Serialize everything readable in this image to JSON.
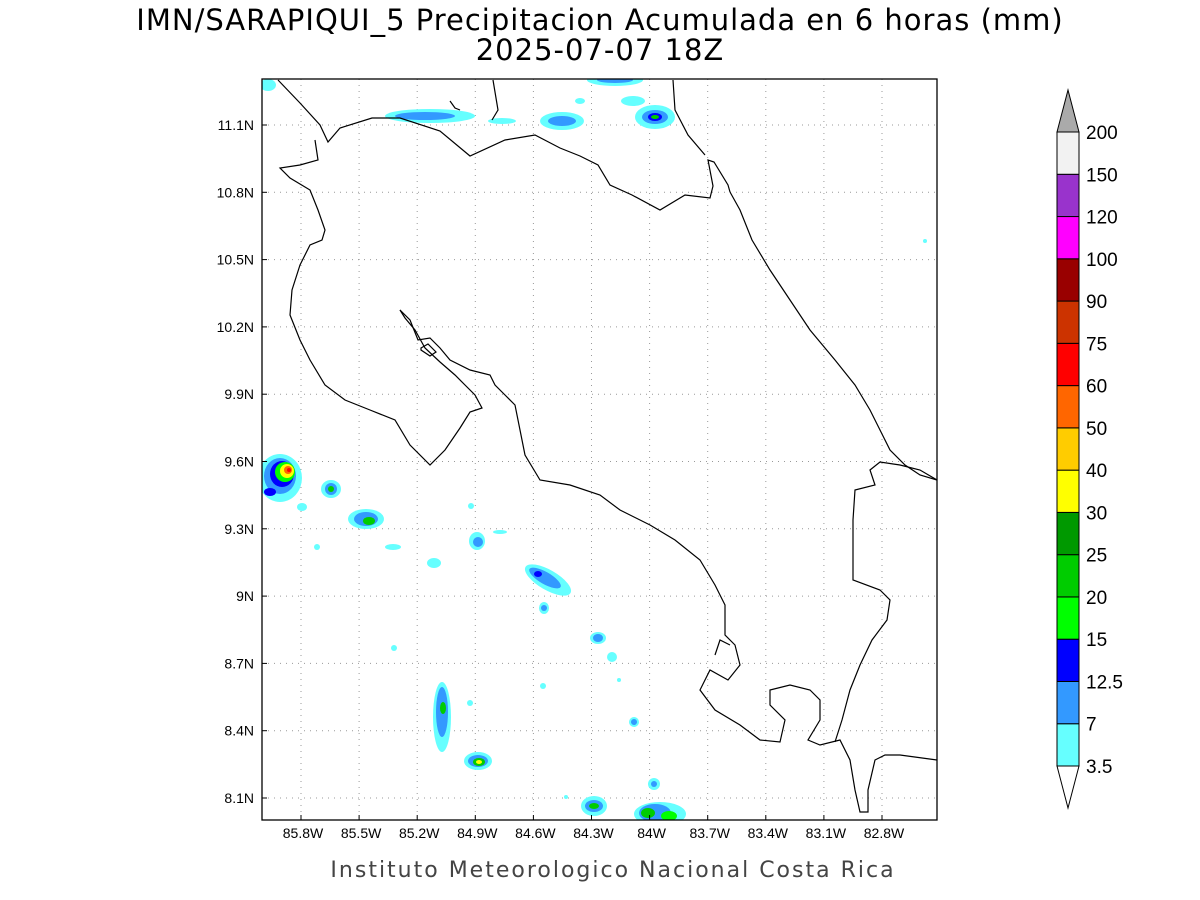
{
  "header": {
    "title": "IMN/SARAPIQUI_5 Precipitacion Acumulada en 6 horas (mm)",
    "subtitle": "2025-07-07 18Z"
  },
  "map": {
    "lat_ticks": [
      "11.1N",
      "10.8N",
      "10.5N",
      "10.2N",
      "9.9N",
      "9.6N",
      "9.3N",
      "9N",
      "8.7N",
      "8.4N",
      "8.1N"
    ],
    "lon_ticks": [
      "85.8W",
      "85.5W",
      "85.2W",
      "84.9W",
      "84.6W",
      "84.3W",
      "84W",
      "83.7W",
      "83.4W",
      "83.1W",
      "82.8W"
    ],
    "grid": "dotted",
    "coastline_color": "#000000"
  },
  "colorbar": {
    "labels": [
      "3.5",
      "7",
      "12.5",
      "15",
      "20",
      "25",
      "30",
      "40",
      "50",
      "60",
      "75",
      "90",
      "100",
      "120",
      "150",
      "200"
    ],
    "colors": [
      "#ffffff",
      "#66ffff",
      "#3399ff",
      "#0000ff",
      "#00ff00",
      "#00cc00",
      "#009900",
      "#ffff00",
      "#ffcc00",
      "#ff6600",
      "#ff0000",
      "#cc3300",
      "#990000",
      "#ff00ff",
      "#9933cc",
      "#f2f2f2",
      "#aaaaaa"
    ]
  },
  "footer": {
    "credit": "Instituto Meteorologico Nacional Costa Rica"
  }
}
